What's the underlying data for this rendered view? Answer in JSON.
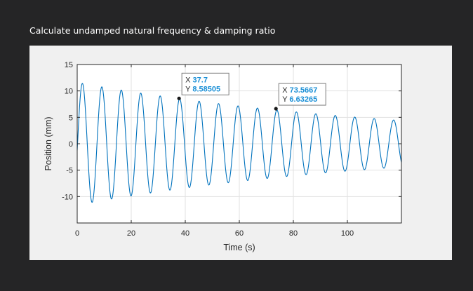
{
  "page": {
    "heading": "Calculate undamped natural frequency & damping ratio"
  },
  "chart_data": {
    "type": "line",
    "title": "",
    "xlabel": "Time (s)",
    "ylabel": "Position (mm)",
    "xlim": [
      0,
      120
    ],
    "ylim": [
      -15,
      15
    ],
    "x_ticks": [
      0,
      20,
      40,
      60,
      80,
      100
    ],
    "y_ticks": [
      15,
      10,
      5,
      0,
      -5,
      -10
    ],
    "x_tick_labels": [
      "0",
      "20",
      "40",
      "60",
      "80",
      "100"
    ],
    "y_tick_labels": [
      "15",
      "10",
      "5",
      "0",
      "-5",
      "-10"
    ],
    "grid": true,
    "series": [
      {
        "name": "",
        "color": "#0072bd",
        "signal": {
          "kind": "damped_sine",
          "x_start": 0,
          "x_end": 120,
          "step": 0.05,
          "initial_amplitude": 11.6,
          "decay_rate": 0.0081,
          "period": 7.2,
          "phase": -0.11
        }
      }
    ],
    "datatips": [
      {
        "x": 37.7,
        "y": 8.58505,
        "x_label": "X",
        "y_label": "Y",
        "x_text": "37.7",
        "y_text": "8.58505",
        "label_color": "#262626",
        "value_color": "#1a8fd6"
      },
      {
        "x": 73.5667,
        "y": 6.63265,
        "x_label": "X",
        "y_label": "Y",
        "x_text": "73.5667",
        "y_text": "6.63265",
        "label_color": "#262626",
        "value_color": "#1a8fd6"
      }
    ]
  }
}
